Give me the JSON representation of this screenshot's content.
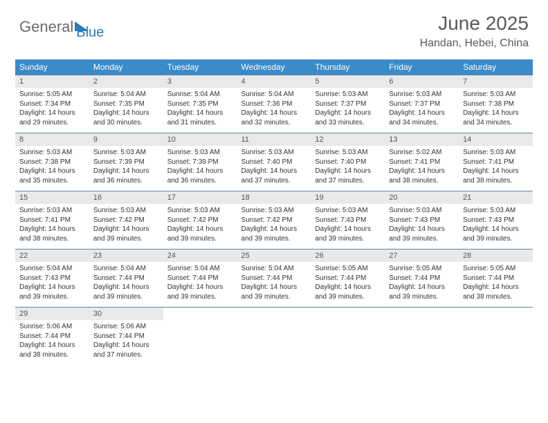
{
  "logo": {
    "text1": "General",
    "text2": "Blue"
  },
  "title": "June 2025",
  "subtitle": "Handan, Hebei, China",
  "colors": {
    "header_bg": "#3b8bc9",
    "header_text": "#ffffff",
    "daynum_bg": "#e9e9e9",
    "border": "#5b87a8",
    "title_color": "#595959",
    "logo_gray": "#6b6b6b",
    "logo_blue": "#2a7ab9"
  },
  "weekdays": [
    "Sunday",
    "Monday",
    "Tuesday",
    "Wednesday",
    "Thursday",
    "Friday",
    "Saturday"
  ],
  "weeks": [
    [
      {
        "n": "1",
        "sr": "Sunrise: 5:05 AM",
        "ss": "Sunset: 7:34 PM",
        "d1": "Daylight: 14 hours",
        "d2": "and 29 minutes."
      },
      {
        "n": "2",
        "sr": "Sunrise: 5:04 AM",
        "ss": "Sunset: 7:35 PM",
        "d1": "Daylight: 14 hours",
        "d2": "and 30 minutes."
      },
      {
        "n": "3",
        "sr": "Sunrise: 5:04 AM",
        "ss": "Sunset: 7:35 PM",
        "d1": "Daylight: 14 hours",
        "d2": "and 31 minutes."
      },
      {
        "n": "4",
        "sr": "Sunrise: 5:04 AM",
        "ss": "Sunset: 7:36 PM",
        "d1": "Daylight: 14 hours",
        "d2": "and 32 minutes."
      },
      {
        "n": "5",
        "sr": "Sunrise: 5:03 AM",
        "ss": "Sunset: 7:37 PM",
        "d1": "Daylight: 14 hours",
        "d2": "and 33 minutes."
      },
      {
        "n": "6",
        "sr": "Sunrise: 5:03 AM",
        "ss": "Sunset: 7:37 PM",
        "d1": "Daylight: 14 hours",
        "d2": "and 34 minutes."
      },
      {
        "n": "7",
        "sr": "Sunrise: 5:03 AM",
        "ss": "Sunset: 7:38 PM",
        "d1": "Daylight: 14 hours",
        "d2": "and 34 minutes."
      }
    ],
    [
      {
        "n": "8",
        "sr": "Sunrise: 5:03 AM",
        "ss": "Sunset: 7:38 PM",
        "d1": "Daylight: 14 hours",
        "d2": "and 35 minutes."
      },
      {
        "n": "9",
        "sr": "Sunrise: 5:03 AM",
        "ss": "Sunset: 7:39 PM",
        "d1": "Daylight: 14 hours",
        "d2": "and 36 minutes."
      },
      {
        "n": "10",
        "sr": "Sunrise: 5:03 AM",
        "ss": "Sunset: 7:39 PM",
        "d1": "Daylight: 14 hours",
        "d2": "and 36 minutes."
      },
      {
        "n": "11",
        "sr": "Sunrise: 5:03 AM",
        "ss": "Sunset: 7:40 PM",
        "d1": "Daylight: 14 hours",
        "d2": "and 37 minutes."
      },
      {
        "n": "12",
        "sr": "Sunrise: 5:03 AM",
        "ss": "Sunset: 7:40 PM",
        "d1": "Daylight: 14 hours",
        "d2": "and 37 minutes."
      },
      {
        "n": "13",
        "sr": "Sunrise: 5:02 AM",
        "ss": "Sunset: 7:41 PM",
        "d1": "Daylight: 14 hours",
        "d2": "and 38 minutes."
      },
      {
        "n": "14",
        "sr": "Sunrise: 5:03 AM",
        "ss": "Sunset: 7:41 PM",
        "d1": "Daylight: 14 hours",
        "d2": "and 38 minutes."
      }
    ],
    [
      {
        "n": "15",
        "sr": "Sunrise: 5:03 AM",
        "ss": "Sunset: 7:41 PM",
        "d1": "Daylight: 14 hours",
        "d2": "and 38 minutes."
      },
      {
        "n": "16",
        "sr": "Sunrise: 5:03 AM",
        "ss": "Sunset: 7:42 PM",
        "d1": "Daylight: 14 hours",
        "d2": "and 39 minutes."
      },
      {
        "n": "17",
        "sr": "Sunrise: 5:03 AM",
        "ss": "Sunset: 7:42 PM",
        "d1": "Daylight: 14 hours",
        "d2": "and 39 minutes."
      },
      {
        "n": "18",
        "sr": "Sunrise: 5:03 AM",
        "ss": "Sunset: 7:42 PM",
        "d1": "Daylight: 14 hours",
        "d2": "and 39 minutes."
      },
      {
        "n": "19",
        "sr": "Sunrise: 5:03 AM",
        "ss": "Sunset: 7:43 PM",
        "d1": "Daylight: 14 hours",
        "d2": "and 39 minutes."
      },
      {
        "n": "20",
        "sr": "Sunrise: 5:03 AM",
        "ss": "Sunset: 7:43 PM",
        "d1": "Daylight: 14 hours",
        "d2": "and 39 minutes."
      },
      {
        "n": "21",
        "sr": "Sunrise: 5:03 AM",
        "ss": "Sunset: 7:43 PM",
        "d1": "Daylight: 14 hours",
        "d2": "and 39 minutes."
      }
    ],
    [
      {
        "n": "22",
        "sr": "Sunrise: 5:04 AM",
        "ss": "Sunset: 7:43 PM",
        "d1": "Daylight: 14 hours",
        "d2": "and 39 minutes."
      },
      {
        "n": "23",
        "sr": "Sunrise: 5:04 AM",
        "ss": "Sunset: 7:44 PM",
        "d1": "Daylight: 14 hours",
        "d2": "and 39 minutes."
      },
      {
        "n": "24",
        "sr": "Sunrise: 5:04 AM",
        "ss": "Sunset: 7:44 PM",
        "d1": "Daylight: 14 hours",
        "d2": "and 39 minutes."
      },
      {
        "n": "25",
        "sr": "Sunrise: 5:04 AM",
        "ss": "Sunset: 7:44 PM",
        "d1": "Daylight: 14 hours",
        "d2": "and 39 minutes."
      },
      {
        "n": "26",
        "sr": "Sunrise: 5:05 AM",
        "ss": "Sunset: 7:44 PM",
        "d1": "Daylight: 14 hours",
        "d2": "and 39 minutes."
      },
      {
        "n": "27",
        "sr": "Sunrise: 5:05 AM",
        "ss": "Sunset: 7:44 PM",
        "d1": "Daylight: 14 hours",
        "d2": "and 39 minutes."
      },
      {
        "n": "28",
        "sr": "Sunrise: 5:05 AM",
        "ss": "Sunset: 7:44 PM",
        "d1": "Daylight: 14 hours",
        "d2": "and 38 minutes."
      }
    ],
    [
      {
        "n": "29",
        "sr": "Sunrise: 5:06 AM",
        "ss": "Sunset: 7:44 PM",
        "d1": "Daylight: 14 hours",
        "d2": "and 38 minutes."
      },
      {
        "n": "30",
        "sr": "Sunrise: 5:06 AM",
        "ss": "Sunset: 7:44 PM",
        "d1": "Daylight: 14 hours",
        "d2": "and 37 minutes."
      },
      null,
      null,
      null,
      null,
      null
    ]
  ]
}
